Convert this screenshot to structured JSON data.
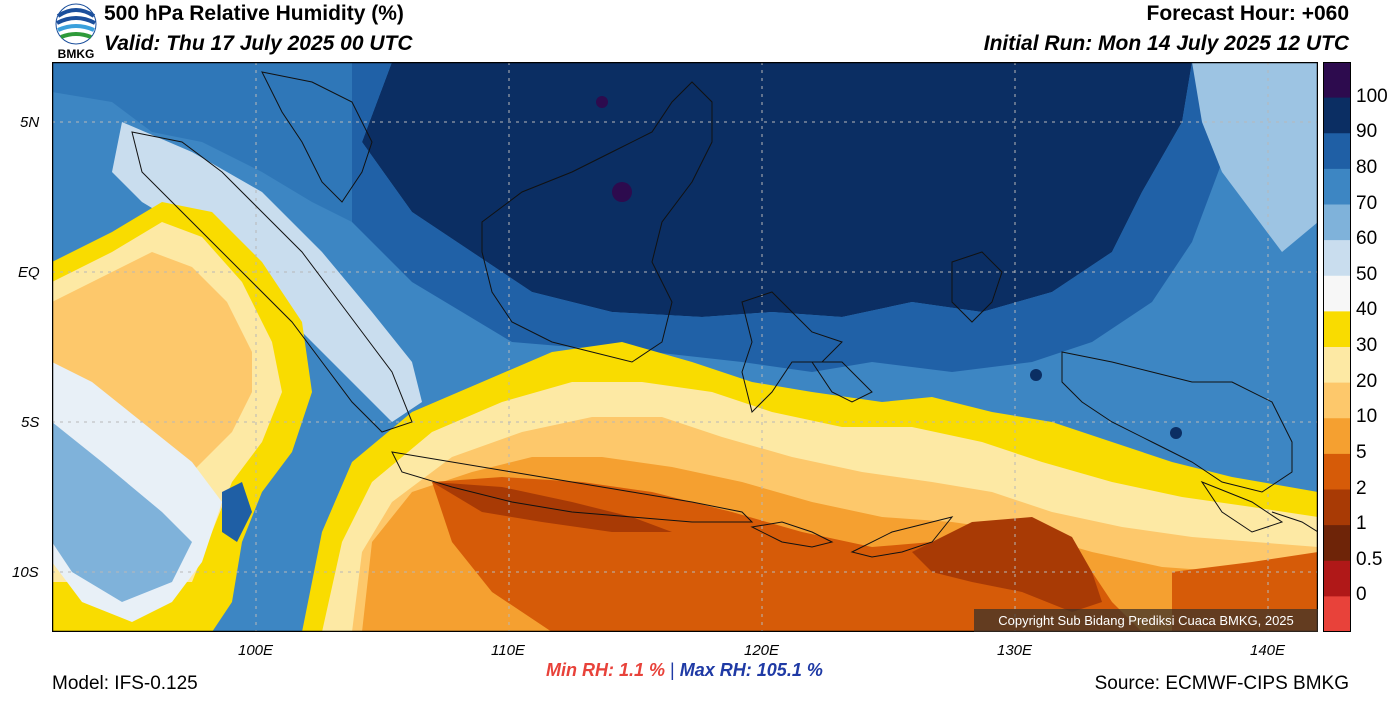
{
  "header": {
    "title": "500 hPa Relative Humidity (%)",
    "valid": "Valid: Thu 17 July 2025 00 UTC",
    "forecast_hour": "Forecast Hour: +060",
    "initial_run": "Initial Run: Mon 14 July 2025 12 UTC",
    "logo_text": "BMKG"
  },
  "map": {
    "lat_labels": [
      "5N",
      "EQ",
      "5S",
      "10S"
    ],
    "lon_labels": [
      "100E",
      "110E",
      "120E",
      "130E",
      "140E"
    ],
    "copyright": "Copyright Sub Bidang Prediksi Cuaca BMKG, 2025"
  },
  "colorbar": {
    "labels": [
      "100",
      "90",
      "80",
      "70",
      "60",
      "50",
      "40",
      "30",
      "20",
      "10",
      "5",
      "2",
      "1",
      "0.5",
      "0"
    ],
    "colors": [
      "#2d0b4e",
      "#0b2e63",
      "#1f5fa5",
      "#3d86c3",
      "#7fb2da",
      "#c9ddee",
      "#f7f7f7",
      "#f9dc00",
      "#fde9a4",
      "#fdc86b",
      "#f5a030",
      "#d65b08",
      "#a83a05",
      "#6e2408",
      "#b01818",
      "#e8423a"
    ]
  },
  "footer": {
    "model": "Model: IFS-0.125",
    "min_label": "Min RH:",
    "min_value": "1.1 %",
    "separator": "|",
    "max_label": "Max RH:",
    "max_value": "105.1 %",
    "source": "Source: ECMWF-CIPS BMKG"
  }
}
